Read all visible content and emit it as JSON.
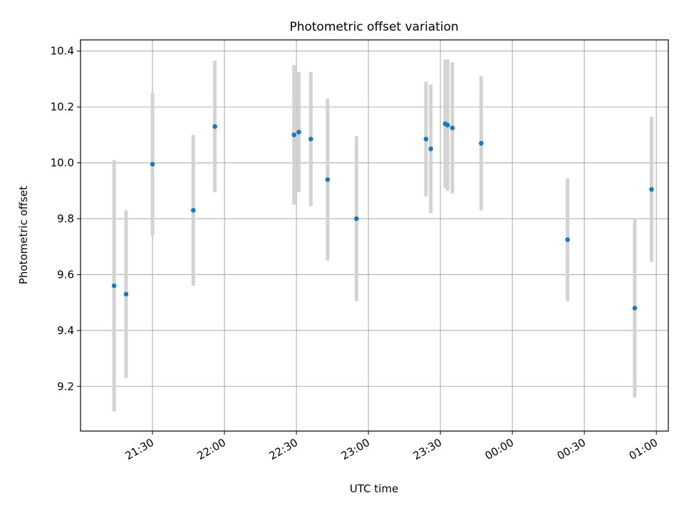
{
  "chart_data": {
    "type": "scatter",
    "title": "Photometric offset variation",
    "xlabel": "UTC time",
    "ylabel": "Photometric offset",
    "x_axis": {
      "kind": "time",
      "start": "21:00",
      "end": "01:05",
      "ticks": [
        "21:30",
        "22:00",
        "22:30",
        "23:00",
        "23:30",
        "00:00",
        "00:30",
        "01:00"
      ]
    },
    "ylim": [
      9.04,
      10.44
    ],
    "yticks": [
      9.2,
      9.4,
      9.6,
      9.8,
      10.0,
      10.2,
      10.4
    ],
    "ytick_labels": [
      "9.2",
      "9.4",
      "9.6",
      "9.8",
      "10.0",
      "10.2",
      "10.4"
    ],
    "grid": true,
    "point_color": "#1f77b4",
    "errorbar_color": "#d3d3d3",
    "points": [
      {
        "t": "21:14",
        "y": 9.56,
        "err": 0.45
      },
      {
        "t": "21:19",
        "y": 9.53,
        "err": 0.3
      },
      {
        "t": "21:30",
        "y": 9.995,
        "err": 0.255
      },
      {
        "t": "21:47",
        "y": 9.83,
        "err": 0.27
      },
      {
        "t": "21:56",
        "y": 10.13,
        "err": 0.235
      },
      {
        "t": "22:29",
        "y": 10.1,
        "err": 0.25
      },
      {
        "t": "22:31",
        "y": 10.11,
        "err": 0.215
      },
      {
        "t": "22:36",
        "y": 10.085,
        "err": 0.24
      },
      {
        "t": "22:43",
        "y": 9.94,
        "err": 0.29
      },
      {
        "t": "22:55",
        "y": 9.8,
        "err": 0.295
      },
      {
        "t": "23:24",
        "y": 10.085,
        "err": 0.205
      },
      {
        "t": "23:26",
        "y": 10.05,
        "err": 0.23
      },
      {
        "t": "23:32",
        "y": 10.14,
        "err": 0.23
      },
      {
        "t": "23:33",
        "y": 10.135,
        "err": 0.235
      },
      {
        "t": "23:35",
        "y": 10.125,
        "err": 0.235
      },
      {
        "t": "23:47",
        "y": 10.07,
        "err": 0.24
      },
      {
        "t": "00:23",
        "y": 9.725,
        "err": 0.22
      },
      {
        "t": "00:51",
        "y": 9.48,
        "err": 0.32
      },
      {
        "t": "00:58",
        "y": 9.905,
        "err": 0.26
      }
    ]
  }
}
